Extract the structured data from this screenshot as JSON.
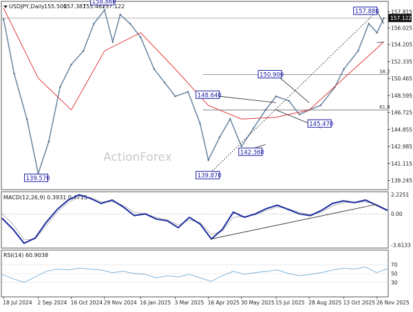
{
  "window_title": "USDJPY,Daily",
  "chart_data": [
    {
      "type": "line",
      "panel": "price",
      "symbol": "USDJPY",
      "timeframe": "Daily",
      "ohlc_header": {
        "open": "155.500",
        "high": "157.387",
        "low": "155.482",
        "close": "157.122"
      },
      "current_price": "157.122",
      "ylim": [
        138.3,
        158.8
      ],
      "y_ticks": [
        "157.815",
        "156.025",
        "154.205",
        "152.335",
        "150.465",
        "148.595",
        "146.725",
        "144.855",
        "142.985",
        "141.115",
        "139.245"
      ],
      "x_ticks": [
        "18 Jul 2024",
        "2 Sep 2024",
        "16 Oct 2024",
        "29 Nov 2024",
        "16 Jan 2025",
        "3 Mar 2025",
        "16 Apr 2025",
        "30 May 2025",
        "15 Jul 2025",
        "28 Aug 2025",
        "13 Oct 2025",
        "26 Nov 2025"
      ],
      "series": [
        {
          "name": "",
          "x": [
            "18 Jul 2024",
            "1 Aug 2024",
            "18 Aug 2024",
            "2 Sep 2024",
            "16 Sep 2024",
            "1 Oct 2024",
            "16 Oct 2024",
            "1 Nov 2024",
            "15 Nov 2024",
            "29 Nov 2024",
            "10 Dec 2024",
            "20 Dec 2024",
            "2 Jan 2025",
            "16 Jan 2025",
            "3 Feb 2025",
            "17 Feb 2025",
            "3 Mar 2025",
            "20 Mar 2025",
            "5 Apr 2025",
            "16 Apr 2025",
            "1 May 2025",
            "15 May 2025",
            "30 May 2025",
            "15 Jun 2025",
            "1 Jul 2025",
            "15 Jul 2025",
            "1 Aug 2025",
            "15 Aug 2025",
            "28 Aug 2025",
            "12 Sep 2025",
            "1 Oct 2025",
            "13 Oct 2025",
            "1 Nov 2025",
            "15 Nov 2025",
            "26 Nov 2025",
            "5 Dec 2025"
          ],
          "values": [
            157.0,
            151.0,
            146.0,
            140.0,
            143.5,
            149.5,
            152.0,
            153.5,
            156.5,
            158.0,
            154.5,
            157.5,
            156.5,
            155.0,
            151.5,
            150.0,
            148.5,
            149.0,
            145.5,
            141.5,
            144.0,
            146.0,
            143.0,
            145.0,
            147.0,
            148.5,
            148.0,
            146.5,
            147.0,
            147.5,
            149.5,
            151.5,
            153.5,
            156.5,
            155.5,
            157.1
          ]
        },
        {
          "name": "",
          "x": [
            "18 Jul 2024",
            "2 Sep 2024",
            "16 Oct 2024",
            "29 Nov 2024",
            "16 Jan 2025",
            "3 Mar 2025",
            "16 Apr 2025",
            "30 May 2025",
            "15 Jul 2025",
            "28 Aug 2025",
            "13 Oct 2025",
            "26 Nov 2025",
            "5 Dec 2025"
          ],
          "values": [
            158.2,
            150.5,
            147.0,
            153.5,
            155.5,
            151.5,
            147.5,
            146.0,
            146.2,
            147.0,
            150.5,
            153.8,
            154.5
          ]
        }
      ],
      "annotations": [
        {
          "label": "158.860",
          "date": "29 Nov 2024",
          "price": 158.86
        },
        {
          "label": "139.570",
          "date": "2 Sep 2024",
          "price": 139.57
        },
        {
          "label": "148.640",
          "date": "16 Apr 2025",
          "price": 148.64
        },
        {
          "label": "139.870",
          "date": "16 Apr 2025",
          "price": 139.87
        },
        {
          "label": "142.360",
          "date": "30 May 2025",
          "price": 142.36
        },
        {
          "label": "150.900",
          "date": "15 Jul 2025",
          "price": 150.9
        },
        {
          "label": "145.470",
          "date": "28 Aug 2025",
          "price": 145.47
        },
        {
          "label": "157.880",
          "date": "26 Nov 2025",
          "price": 157.88
        }
      ],
      "fib_levels": [
        {
          "label": "38.2",
          "price": 150.9
        },
        {
          "label": "61.8",
          "price": 147.0
        }
      ],
      "watermark": "ActionForex"
    },
    {
      "type": "line",
      "panel": "macd",
      "title": "MACD(12,26,9) 0.3931 0.4715",
      "y_ticks": [
        "2.2251",
        "0.00",
        "-3.6133"
      ],
      "ylim": [
        -3.8,
        2.4
      ],
      "series": [
        {
          "name": "",
          "values": [
            -0.5,
            -1.8,
            -3.4,
            -2.8,
            -1.0,
            0.5,
            1.6,
            2.2,
            1.8,
            1.2,
            1.6,
            0.8,
            -0.2,
            0.0,
            -0.6,
            -0.8,
            -1.6,
            -0.4,
            -1.2,
            -2.9,
            -1.8,
            0.2,
            -0.4,
            0.0,
            0.6,
            1.0,
            0.5,
            0.0,
            -0.2,
            0.4,
            1.2,
            1.5,
            1.3,
            1.6,
            1.0,
            0.39
          ]
        },
        {
          "name": "",
          "values": [
            0.0,
            -1.2,
            -3.0,
            -2.9,
            -1.4,
            0.2,
            1.3,
            2.0,
            1.9,
            1.4,
            1.4,
            1.0,
            0.2,
            0.0,
            -0.4,
            -0.7,
            -1.3,
            -0.7,
            -1.0,
            -2.4,
            -2.0,
            -0.4,
            -0.3,
            -0.1,
            0.4,
            0.8,
            0.6,
            0.2,
            -0.1,
            0.2,
            0.9,
            1.3,
            1.3,
            1.4,
            1.1,
            0.47
          ]
        }
      ]
    },
    {
      "type": "line",
      "panel": "rsi",
      "title": "RSI(14) 60.9038",
      "y_ticks": [
        "70",
        "50",
        "30"
      ],
      "ylim": [
        0,
        100
      ],
      "series": [
        {
          "name": "",
          "values": [
            48,
            38,
            30,
            42,
            55,
            60,
            58,
            62,
            60,
            58,
            52,
            55,
            50,
            48,
            40,
            45,
            42,
            48,
            40,
            32,
            45,
            55,
            48,
            52,
            55,
            58,
            50,
            45,
            48,
            52,
            58,
            62,
            60,
            65,
            52,
            60.9
          ]
        }
      ]
    }
  ]
}
